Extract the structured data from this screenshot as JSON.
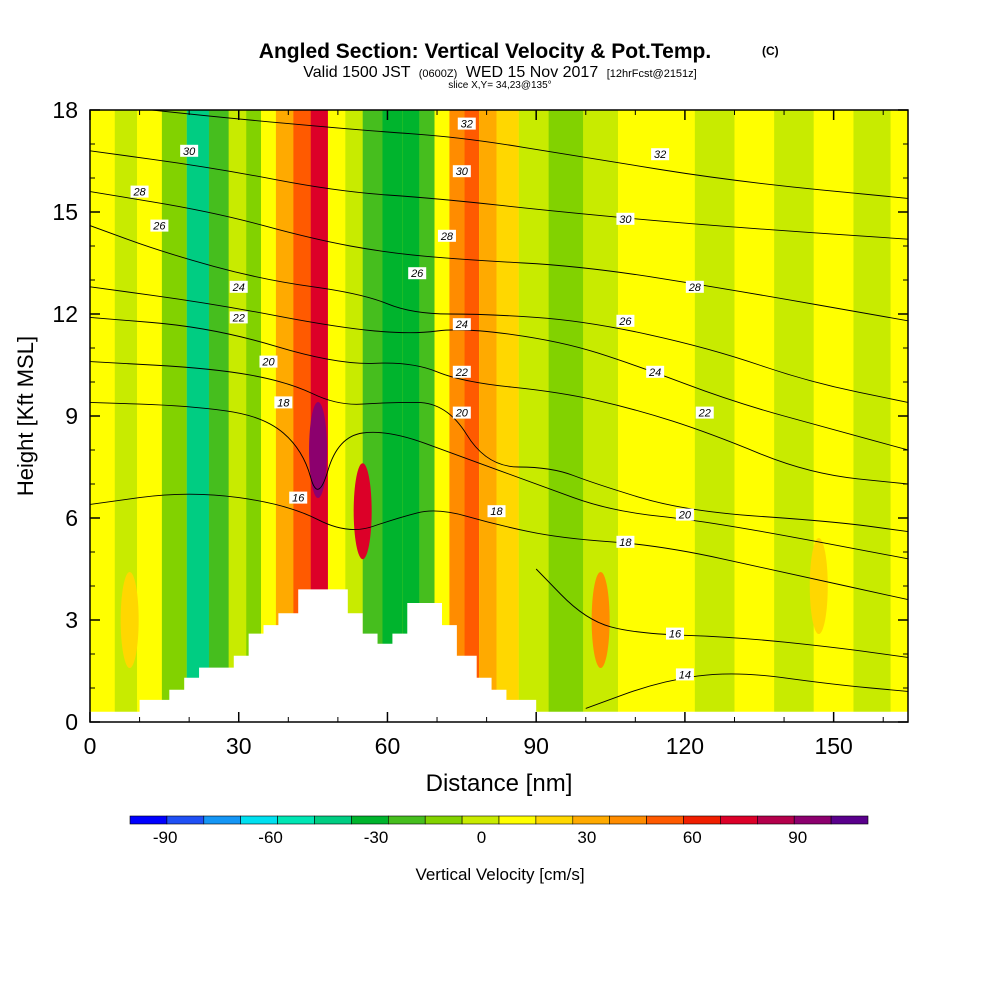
{
  "header": {
    "title": "Angled Section: Vertical Velocity & Pot.Temp.",
    "title_unit": "(C)",
    "valid_main": "Valid 1500 JST",
    "valid_utc": "(0600Z)",
    "valid_date": "WED 15 Nov 2017",
    "forecast": "[12hrFcst@2151z]",
    "slice": "slice X,Y= 34,23@135°"
  },
  "chart_data": {
    "type": "heatmap",
    "title": "Angled Section: Vertical Velocity & Pot.Temp.",
    "xlabel": "Distance [nm]",
    "ylabel": "Height [Kft MSL]",
    "xlim": [
      0,
      165
    ],
    "ylim": [
      0,
      18
    ],
    "x_ticks": [
      "0",
      "30",
      "60",
      "90",
      "120",
      "150"
    ],
    "x_tick_values": [
      0,
      30,
      60,
      90,
      120,
      150
    ],
    "y_ticks": [
      "0",
      "3",
      "6",
      "9",
      "12",
      "15",
      "18"
    ],
    "y_tick_values": [
      0,
      3,
      6,
      9,
      12,
      15,
      18
    ],
    "colorbar": {
      "label": "Vertical Velocity [cm/s]",
      "ticks": [
        "-90",
        "-60",
        "-30",
        "0",
        "30",
        "60",
        "90"
      ],
      "tick_values": [
        -90,
        -60,
        -30,
        0,
        30,
        60,
        90
      ],
      "range": [
        -100,
        110
      ],
      "step": 10,
      "colors": [
        "#0000ff",
        "#1f50f5",
        "#1496f5",
        "#00e0f0",
        "#00e6b4",
        "#00cd82",
        "#00b42d",
        "#46be1e",
        "#82d200",
        "#c8eb00",
        "#ffff00",
        "#ffd700",
        "#ffaa00",
        "#ff8c00",
        "#ff5a00",
        "#f01e00",
        "#dc0028",
        "#b4004b",
        "#8c006e",
        "#5a008c"
      ]
    },
    "velocity_columns": [
      {
        "x": 3,
        "v": 5
      },
      {
        "x": 7,
        "v": -10
      },
      {
        "x": 12,
        "v": 5
      },
      {
        "x": 17,
        "v": -18
      },
      {
        "x": 22,
        "v": -45
      },
      {
        "x": 26,
        "v": -30
      },
      {
        "x": 30,
        "v": -10
      },
      {
        "x": 33,
        "v": -20
      },
      {
        "x": 36,
        "v": 5
      },
      {
        "x": 39,
        "v": 20
      },
      {
        "x": 43,
        "v": 45
      },
      {
        "x": 46,
        "v": 60
      },
      {
        "x": 50,
        "v": 0
      },
      {
        "x": 53,
        "v": -10
      },
      {
        "x": 57,
        "v": -25
      },
      {
        "x": 61,
        "v": -40
      },
      {
        "x": 65,
        "v": -35
      },
      {
        "x": 68,
        "v": -30
      },
      {
        "x": 71,
        "v": 0
      },
      {
        "x": 74,
        "v": 30
      },
      {
        "x": 77,
        "v": 40
      },
      {
        "x": 80,
        "v": 25
      },
      {
        "x": 84,
        "v": 10
      },
      {
        "x": 89,
        "v": -5
      },
      {
        "x": 96,
        "v": -12
      },
      {
        "x": 103,
        "v": -5
      },
      {
        "x": 110,
        "v": 0
      },
      {
        "x": 118,
        "v": 5
      },
      {
        "x": 126,
        "v": -5
      },
      {
        "x": 134,
        "v": 5
      },
      {
        "x": 142,
        "v": -10
      },
      {
        "x": 150,
        "v": 5
      },
      {
        "x": 158,
        "v": -5
      },
      {
        "x": 165,
        "v": 5
      }
    ],
    "velocity_cells": [
      {
        "x": 46,
        "y": 8,
        "v": 85
      },
      {
        "x": 55,
        "y": 6.2,
        "v": 60
      },
      {
        "x": 103,
        "y": 3,
        "v": 30
      },
      {
        "x": 8,
        "y": 3,
        "v": 15
      },
      {
        "x": 147,
        "y": 4,
        "v": 15
      }
    ],
    "terrain_profile": [
      {
        "x": 0,
        "y": 0.3
      },
      {
        "x": 10,
        "y": 0.3
      },
      {
        "x": 10,
        "y": 0.65
      },
      {
        "x": 16,
        "y": 0.65
      },
      {
        "x": 16,
        "y": 0.95
      },
      {
        "x": 19,
        "y": 0.95
      },
      {
        "x": 19,
        "y": 1.3
      },
      {
        "x": 22,
        "y": 1.3
      },
      {
        "x": 22,
        "y": 1.6
      },
      {
        "x": 29,
        "y": 1.6
      },
      {
        "x": 29,
        "y": 1.95
      },
      {
        "x": 32,
        "y": 1.95
      },
      {
        "x": 32,
        "y": 2.6
      },
      {
        "x": 35,
        "y": 2.6
      },
      {
        "x": 35,
        "y": 2.85
      },
      {
        "x": 38,
        "y": 2.85
      },
      {
        "x": 38,
        "y": 3.2
      },
      {
        "x": 42,
        "y": 3.2
      },
      {
        "x": 42,
        "y": 3.9
      },
      {
        "x": 52,
        "y": 3.9
      },
      {
        "x": 52,
        "y": 3.2
      },
      {
        "x": 55,
        "y": 3.2
      },
      {
        "x": 55,
        "y": 2.6
      },
      {
        "x": 58,
        "y": 2.6
      },
      {
        "x": 58,
        "y": 2.3
      },
      {
        "x": 61,
        "y": 2.3
      },
      {
        "x": 61,
        "y": 2.6
      },
      {
        "x": 64,
        "y": 2.6
      },
      {
        "x": 64,
        "y": 3.5
      },
      {
        "x": 71,
        "y": 3.5
      },
      {
        "x": 71,
        "y": 2.85
      },
      {
        "x": 74,
        "y": 2.85
      },
      {
        "x": 74,
        "y": 1.95
      },
      {
        "x": 78,
        "y": 1.95
      },
      {
        "x": 78,
        "y": 1.3
      },
      {
        "x": 81,
        "y": 1.3
      },
      {
        "x": 81,
        "y": 0.95
      },
      {
        "x": 84,
        "y": 0.95
      },
      {
        "x": 84,
        "y": 0.65
      },
      {
        "x": 90,
        "y": 0.65
      },
      {
        "x": 90,
        "y": 0.3
      },
      {
        "x": 165,
        "y": 0.3
      }
    ],
    "isentropes": [
      {
        "level": 14,
        "label": "14",
        "points": [
          [
            100,
            0.4
          ],
          [
            115,
            1.2
          ],
          [
            130,
            1.5
          ],
          [
            150,
            1.1
          ],
          [
            165,
            0.9
          ]
        ]
      },
      {
        "level": 16,
        "label": "16",
        "points": [
          [
            90,
            4.5
          ],
          [
            100,
            3
          ],
          [
            110,
            2.6
          ],
          [
            130,
            2.5
          ],
          [
            150,
            2.2
          ],
          [
            165,
            1.9
          ]
        ]
      },
      {
        "level": 18,
        "label": "18",
        "points": [
          [
            0,
            6.4
          ],
          [
            20,
            6.8
          ],
          [
            40,
            6.4
          ],
          [
            52,
            5.5
          ],
          [
            62,
            6
          ],
          [
            70,
            6.3
          ],
          [
            82,
            5.8
          ],
          [
            95,
            5.4
          ],
          [
            115,
            5.2
          ],
          [
            140,
            4.4
          ],
          [
            165,
            3.6
          ]
        ]
      },
      {
        "level": 18,
        "label": "18",
        "points": [
          [
            0,
            9.4
          ],
          [
            20,
            9.3
          ],
          [
            35,
            9
          ],
          [
            43,
            8
          ],
          [
            46,
            6.4
          ],
          [
            50,
            8.4
          ],
          [
            60,
            8.6
          ],
          [
            75,
            7.8
          ],
          [
            90,
            7
          ],
          [
            105,
            6.2
          ],
          [
            125,
            5.9
          ],
          [
            165,
            4.8
          ]
        ]
      },
      {
        "level": 20,
        "label": "20",
        "points": [
          [
            0,
            10.6
          ],
          [
            25,
            10.4
          ],
          [
            40,
            10
          ],
          [
            50,
            9.3
          ],
          [
            60,
            9.4
          ],
          [
            72,
            9.4
          ],
          [
            80,
            7.5
          ],
          [
            93,
            7.5
          ],
          [
            102,
            7
          ],
          [
            120,
            6.2
          ],
          [
            150,
            5.9
          ],
          [
            165,
            5.6
          ]
        ]
      },
      {
        "level": 22,
        "label": "22",
        "points": [
          [
            0,
            11.9
          ],
          [
            25,
            11.6
          ],
          [
            50,
            10.5
          ],
          [
            65,
            10.6
          ],
          [
            75,
            10
          ],
          [
            95,
            9.7
          ],
          [
            110,
            9.2
          ],
          [
            125,
            8.5
          ],
          [
            145,
            7.3
          ],
          [
            165,
            7
          ]
        ]
      },
      {
        "level": 24,
        "label": "24",
        "points": [
          [
            0,
            12.8
          ],
          [
            25,
            12.3
          ],
          [
            50,
            11.6
          ],
          [
            65,
            11.4
          ],
          [
            75,
            11.6
          ],
          [
            95,
            11.2
          ],
          [
            110,
            10.5
          ],
          [
            130,
            9.4
          ],
          [
            150,
            8.6
          ],
          [
            165,
            8
          ]
        ]
      },
      {
        "level": 26,
        "label": "26",
        "points": [
          [
            0,
            14.6
          ],
          [
            15,
            13.8
          ],
          [
            35,
            13
          ],
          [
            55,
            12.6
          ],
          [
            65,
            12
          ],
          [
            80,
            12
          ],
          [
            100,
            11.8
          ],
          [
            125,
            11
          ],
          [
            145,
            10
          ],
          [
            165,
            9.4
          ]
        ]
      },
      {
        "level": 28,
        "label": "28",
        "points": [
          [
            0,
            15.6
          ],
          [
            25,
            15
          ],
          [
            45,
            14.2
          ],
          [
            60,
            13.8
          ],
          [
            75,
            13.6
          ],
          [
            100,
            13.4
          ],
          [
            130,
            12.7
          ],
          [
            165,
            11.8
          ]
        ]
      },
      {
        "level": 30,
        "label": "30",
        "points": [
          [
            0,
            16.8
          ],
          [
            25,
            16.3
          ],
          [
            50,
            15.6
          ],
          [
            70,
            15.4
          ],
          [
            95,
            15
          ],
          [
            125,
            14.6
          ],
          [
            165,
            14.2
          ]
        ]
      },
      {
        "level": 32,
        "label": "32",
        "points": [
          [
            0,
            18.2
          ],
          [
            25,
            17.8
          ],
          [
            55,
            17.4
          ],
          [
            75,
            17.2
          ],
          [
            100,
            16.6
          ],
          [
            130,
            15.9
          ],
          [
            165,
            15.4
          ]
        ]
      }
    ],
    "isentrope_labels": [
      {
        "text": "30",
        "x": 20,
        "y": 16.8
      },
      {
        "text": "28",
        "x": 10,
        "y": 15.6
      },
      {
        "text": "26",
        "x": 14,
        "y": 14.6
      },
      {
        "text": "24",
        "x": 30,
        "y": 12.8
      },
      {
        "text": "22",
        "x": 30,
        "y": 11.9
      },
      {
        "text": "20",
        "x": 36,
        "y": 10.6
      },
      {
        "text": "18",
        "x": 39,
        "y": 9.4
      },
      {
        "text": "16",
        "x": 42,
        "y": 6.6
      },
      {
        "text": "32",
        "x": 76,
        "y": 17.6
      },
      {
        "text": "30",
        "x": 75,
        "y": 16.2
      },
      {
        "text": "28",
        "x": 72,
        "y": 14.3
      },
      {
        "text": "26",
        "x": 66,
        "y": 13.2
      },
      {
        "text": "24",
        "x": 75,
        "y": 11.7
      },
      {
        "text": "22",
        "x": 75,
        "y": 10.3
      },
      {
        "text": "20",
        "x": 75,
        "y": 9.1
      },
      {
        "text": "18",
        "x": 82,
        "y": 6.2
      },
      {
        "text": "32",
        "x": 115,
        "y": 16.7
      },
      {
        "text": "30",
        "x": 108,
        "y": 14.8
      },
      {
        "text": "28",
        "x": 122,
        "y": 12.8
      },
      {
        "text": "26",
        "x": 108,
        "y": 11.8
      },
      {
        "text": "24",
        "x": 114,
        "y": 10.3
      },
      {
        "text": "22",
        "x": 124,
        "y": 9.1
      },
      {
        "text": "20",
        "x": 120,
        "y": 6.1
      },
      {
        "text": "18",
        "x": 108,
        "y": 5.3
      },
      {
        "text": "16",
        "x": 118,
        "y": 2.6
      },
      {
        "text": "14",
        "x": 120,
        "y": 1.4
      }
    ]
  }
}
